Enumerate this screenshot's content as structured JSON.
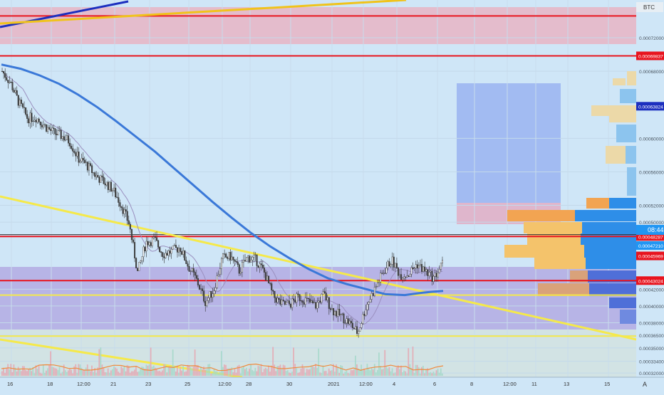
{
  "chart_data": {
    "type": "candlestick",
    "quote_currency": "BTC",
    "countdown": "08:44",
    "auto_label": "A",
    "y_axis_ticks": [
      "0.00072000",
      "0.00068000",
      "0.00060000",
      "0.00056000",
      "0.00052000",
      "0.00050000",
      "0.00042000",
      "0.00040000",
      "0.00038000",
      "0.00036500",
      "0.00035000",
      "0.00033400",
      "0.00032000"
    ],
    "price_labels": [
      {
        "text": "0.00069837",
        "color": "#e8141e"
      },
      {
        "text": "0.00063824",
        "color": "#1c2fbf"
      },
      {
        "text": "0.00048513",
        "color": "#2b2b2b"
      },
      {
        "text": "0.00048287",
        "color": "#e8141e"
      },
      {
        "text": "0.00047210",
        "color": "#2196f3"
      },
      {
        "text": "0.00045969",
        "color": "#e8141e"
      },
      {
        "text": "0.00043024",
        "color": "#e8141e"
      }
    ],
    "x_axis_ticks": [
      "16",
      "18",
      "12:00",
      "21",
      "23",
      "25",
      "12:00",
      "28",
      "30",
      "2021",
      "12:00",
      "4",
      "6",
      "8",
      "12:00",
      "11",
      "13",
      "15"
    ],
    "ylim": [
      0.000315,
      0.000765
    ],
    "horizontal_levels": [
      {
        "price": 0.000746,
        "color": "#e8141e"
      },
      {
        "price": 0.00069837,
        "color": "#e8141e"
      },
      {
        "price": 0.00048513,
        "color": "#333333"
      },
      {
        "price": 0.00048287,
        "color": "#e8141e"
      },
      {
        "price": 0.00043024,
        "color": "#e8141e"
      },
      {
        "price": 0.000413,
        "color": "#f5e94a"
      },
      {
        "price": 0.000364,
        "color": "#f5e94a"
      }
    ],
    "series": [
      {
        "name": "price",
        "values": [
          0.00068,
          0.000666,
          0.000642,
          0.000624,
          0.000625,
          0.000615,
          0.000607,
          0.000603,
          0.000596,
          0.000576,
          0.000568,
          0.000556,
          0.000548,
          0.00054,
          0.000522,
          0.000498,
          0.00044,
          0.000476,
          0.000479,
          0.000462,
          0.000465,
          0.00047,
          0.000447,
          0.00043,
          0.000405,
          0.000419,
          0.000457,
          0.000459,
          0.000442,
          0.000458,
          0.000455,
          0.000439,
          0.000412,
          0.000402,
          0.000402,
          0.000411,
          0.000406,
          0.0004,
          0.000414,
          0.000395,
          0.000388,
          0.00038,
          0.000368,
          0.0004,
          0.00042,
          0.00044,
          0.000455,
          0.000437,
          0.000438,
          0.00045,
          0.000441,
          0.000433,
          0.00045
        ]
      },
      {
        "name": "ma_200",
        "values": [
          0.000688,
          0.000683,
          0.000675,
          0.000665,
          0.000652,
          0.000637,
          0.00062,
          0.000602,
          0.000584,
          0.000564,
          0.000544,
          0.000524,
          0.000505,
          0.000487,
          0.000471,
          0.000457,
          0.000444,
          0.000433,
          0.000426,
          0.00042,
          0.000414,
          0.000413,
          0.000416,
          0.000418
        ]
      }
    ]
  }
}
